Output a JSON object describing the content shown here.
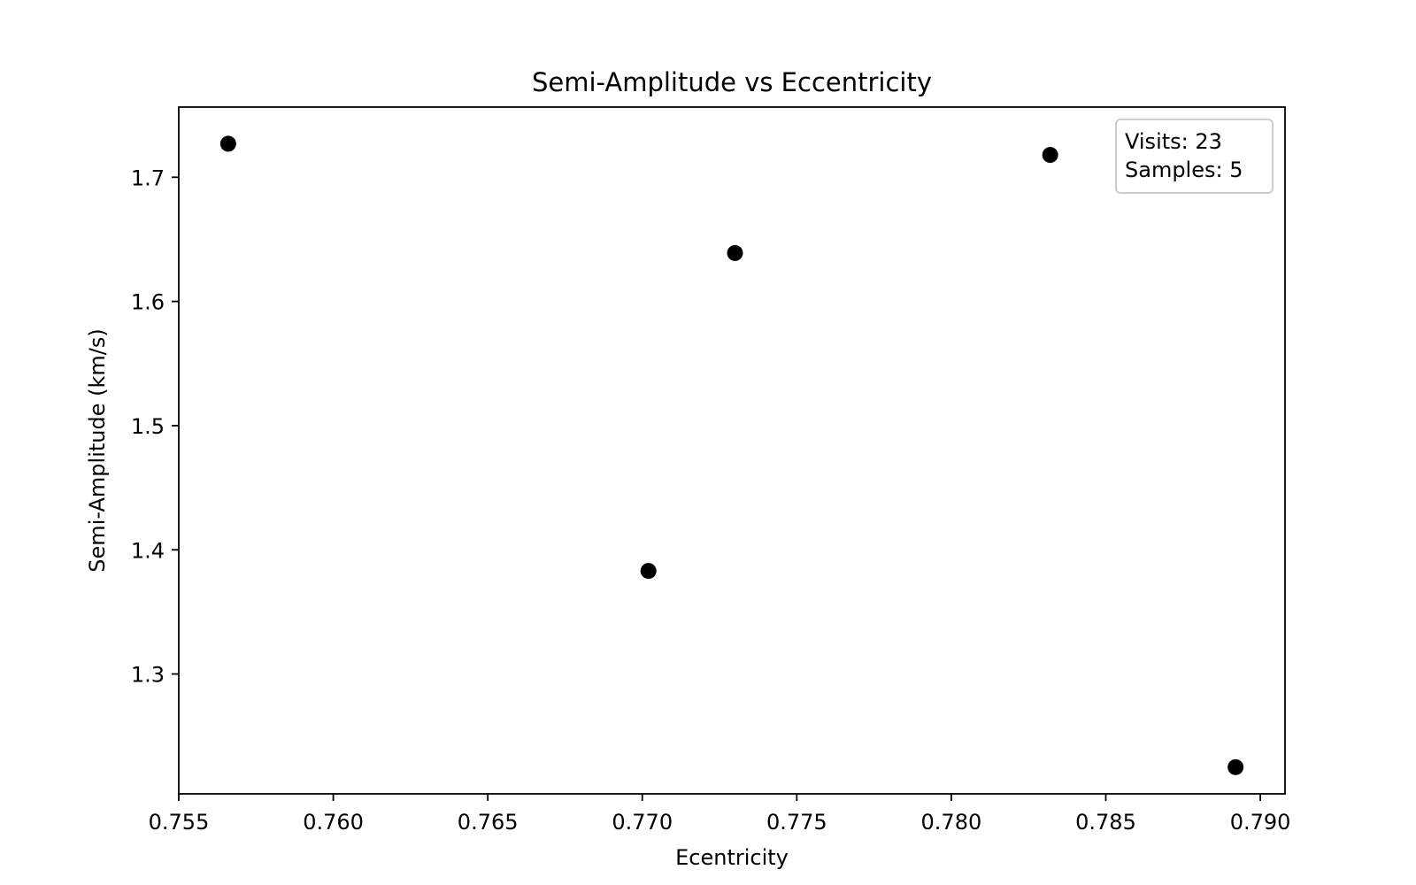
{
  "chart_data": {
    "type": "scatter",
    "title": "Semi-Amplitude vs Eccentricity",
    "xlabel": "Ecentricity",
    "ylabel": "Semi-Amplitude (km/s)",
    "xlim": [
      0.755,
      0.7908
    ],
    "ylim": [
      1.2035,
      1.7565
    ],
    "xticks": [
      0.755,
      0.76,
      0.765,
      0.77,
      0.775,
      0.78,
      0.785,
      0.79
    ],
    "xtick_labels": [
      "0.755",
      "0.760",
      "0.765",
      "0.770",
      "0.775",
      "0.780",
      "0.785",
      "0.790"
    ],
    "yticks": [
      1.3,
      1.4,
      1.5,
      1.6,
      1.7
    ],
    "ytick_labels": [
      "1.3",
      "1.4",
      "1.5",
      "1.6",
      "1.7"
    ],
    "grid": false,
    "marker_color": "#000000",
    "points": [
      {
        "x": 0.7566,
        "y": 1.727
      },
      {
        "x": 0.7702,
        "y": 1.383
      },
      {
        "x": 0.773,
        "y": 1.639
      },
      {
        "x": 0.7832,
        "y": 1.718
      },
      {
        "x": 0.7892,
        "y": 1.225
      }
    ],
    "annotation": {
      "line1": "Visits: 23",
      "line2": "Samples: 5",
      "placement": "top-right"
    }
  }
}
